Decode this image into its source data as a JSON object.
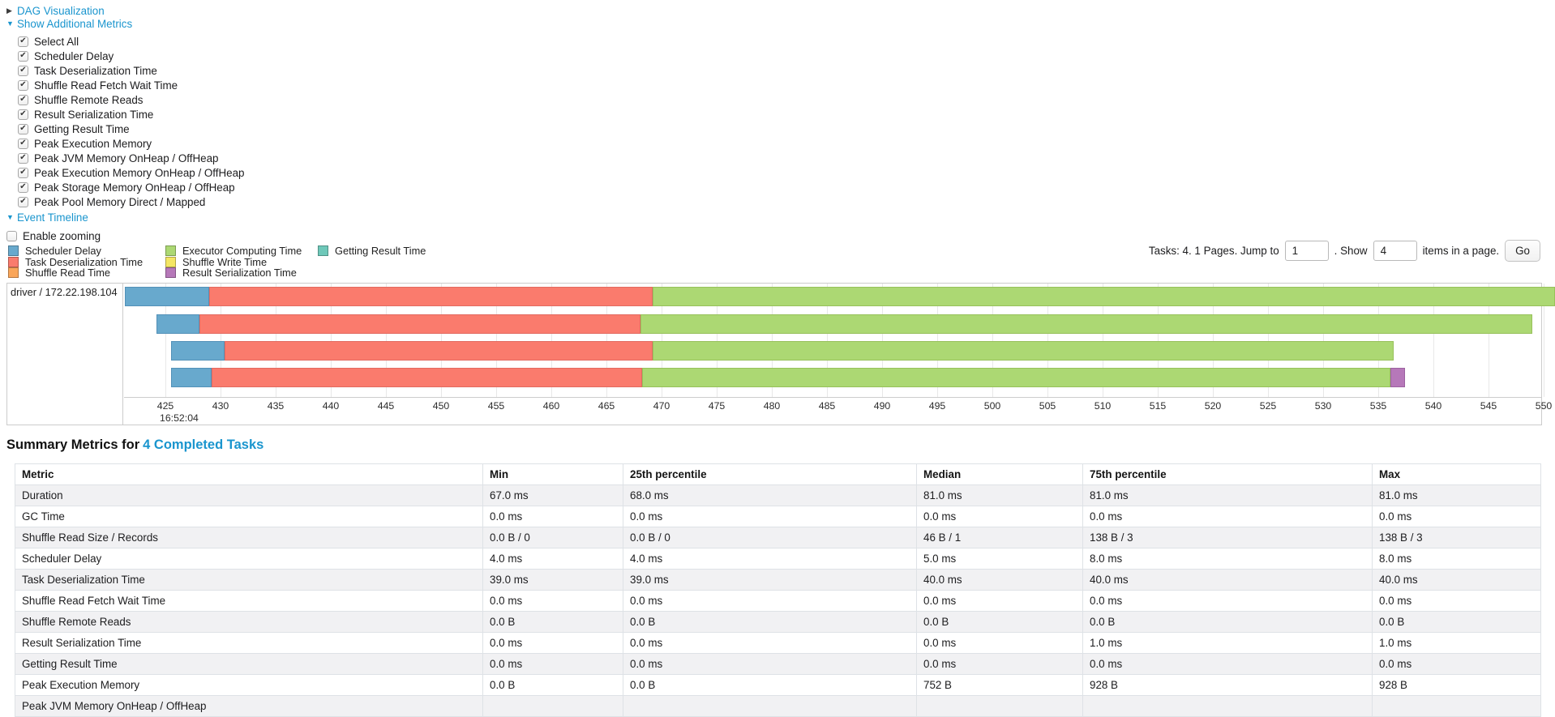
{
  "controls": {
    "dag_toggle": {
      "arrow": "▶",
      "label": "DAG Visualization"
    },
    "metrics_toggle": {
      "arrow": "▼",
      "label": "Show Additional Metrics"
    },
    "metric_checkboxes": [
      {
        "label": "Select All",
        "checked": true
      },
      {
        "label": "Scheduler Delay",
        "checked": true
      },
      {
        "label": "Task Deserialization Time",
        "checked": true
      },
      {
        "label": "Shuffle Read Fetch Wait Time",
        "checked": true
      },
      {
        "label": "Shuffle Remote Reads",
        "checked": true
      },
      {
        "label": "Result Serialization Time",
        "checked": true
      },
      {
        "label": "Getting Result Time",
        "checked": true
      },
      {
        "label": "Peak Execution Memory",
        "checked": true
      },
      {
        "label": "Peak JVM Memory OnHeap / OffHeap",
        "checked": true
      },
      {
        "label": "Peak Execution Memory OnHeap / OffHeap",
        "checked": true
      },
      {
        "label": "Peak Storage Memory OnHeap / OffHeap",
        "checked": true
      },
      {
        "label": "Peak Pool Memory Direct / Mapped",
        "checked": true
      }
    ],
    "timeline_toggle": {
      "arrow": "▼",
      "label": "Event Timeline"
    },
    "enable_zooming": {
      "label": "Enable zooming",
      "checked": false
    }
  },
  "legend": {
    "columns": [
      [
        {
          "label": "Scheduler Delay",
          "color": "#68A9CD"
        },
        {
          "label": "Task Deserialization Time",
          "color": "#FA7B6D"
        },
        {
          "label": "Shuffle Read Time",
          "color": "#FAA65A"
        }
      ],
      [
        {
          "label": "Executor Computing Time",
          "color": "#ACD873"
        },
        {
          "label": "Shuffle Write Time",
          "color": "#F4E664"
        },
        {
          "label": "Result Serialization Time",
          "color": "#B678B9"
        }
      ],
      [
        {
          "label": "Getting Result Time",
          "color": "#6EC8B9"
        }
      ]
    ]
  },
  "pagination": {
    "prefix": "Tasks: 4. 1 Pages. Jump to",
    "jump_value": "1",
    "mid": ". Show",
    "show_value": "4",
    "suffix": "items in a page.",
    "go_label": "Go"
  },
  "chart_data": {
    "type": "bar",
    "title": "Event Timeline",
    "row_label": "driver / 172.22.198.104",
    "time_origin_label": "16:52:04",
    "x_unit": "ms offset within 16:52:04",
    "x_ticks": [
      425,
      430,
      435,
      440,
      445,
      450,
      455,
      460,
      465,
      470,
      475,
      480,
      485,
      490,
      495,
      500,
      505,
      510,
      515,
      520,
      525,
      530,
      535,
      540,
      545,
      550
    ],
    "x_range": [
      421.3,
      549.8
    ],
    "colors": {
      "scheduler_delay": {
        "fill": "#68A9CD",
        "border": "#5391B8"
      },
      "task_deserialization": {
        "fill": "#FA7B6D",
        "border": "#E26A60"
      },
      "executor_computing": {
        "fill": "#ACD873",
        "border": "#97C15B"
      },
      "result_serialization": {
        "fill": "#B678B9",
        "border": "#9C62A0"
      },
      "shuffle_read": {
        "fill": "#FAA65A",
        "border": "#E0904A"
      },
      "shuffle_write": {
        "fill": "#F4E664",
        "border": "#DCCE50"
      },
      "getting_result": {
        "fill": "#6EC8B9",
        "border": "#58B0A1"
      }
    },
    "tasks": [
      {
        "segments": [
          [
            "scheduler_delay",
            421.3,
            429.0
          ],
          [
            "task_deserialization",
            429.0,
            469.2
          ],
          [
            "executor_computing",
            469.2,
            551.0
          ]
        ]
      },
      {
        "segments": [
          [
            "scheduler_delay",
            424.2,
            428.1
          ],
          [
            "task_deserialization",
            428.1,
            468.1
          ],
          [
            "executor_computing",
            468.1,
            549.0
          ]
        ]
      },
      {
        "segments": [
          [
            "scheduler_delay",
            425.5,
            430.4
          ],
          [
            "task_deserialization",
            430.4,
            469.2
          ],
          [
            "executor_computing",
            469.2,
            536.4
          ]
        ]
      },
      {
        "segments": [
          [
            "scheduler_delay",
            425.5,
            429.2
          ],
          [
            "task_deserialization",
            429.2,
            468.2
          ],
          [
            "executor_computing",
            468.2,
            536.1
          ],
          [
            "result_serialization",
            536.1,
            537.4
          ]
        ]
      }
    ]
  },
  "summary_table": {
    "title_prefix": "Summary Metrics for",
    "title_link": "4 Completed Tasks",
    "columns": [
      "Metric",
      "Min",
      "25th percentile",
      "Median",
      "75th percentile",
      "Max"
    ],
    "rows": [
      [
        "Duration",
        "67.0 ms",
        "68.0 ms",
        "81.0 ms",
        "81.0 ms",
        "81.0 ms"
      ],
      [
        "GC Time",
        "0.0 ms",
        "0.0 ms",
        "0.0 ms",
        "0.0 ms",
        "0.0 ms"
      ],
      [
        "Shuffle Read Size / Records",
        "0.0 B / 0",
        "0.0 B / 0",
        "46 B / 1",
        "138 B / 3",
        "138 B / 3"
      ],
      [
        "Scheduler Delay",
        "4.0 ms",
        "4.0 ms",
        "5.0 ms",
        "8.0 ms",
        "8.0 ms"
      ],
      [
        "Task Deserialization Time",
        "39.0 ms",
        "39.0 ms",
        "40.0 ms",
        "40.0 ms",
        "40.0 ms"
      ],
      [
        "Shuffle Read Fetch Wait Time",
        "0.0 ms",
        "0.0 ms",
        "0.0 ms",
        "0.0 ms",
        "0.0 ms"
      ],
      [
        "Shuffle Remote Reads",
        "0.0 B",
        "0.0 B",
        "0.0 B",
        "0.0 B",
        "0.0 B"
      ],
      [
        "Result Serialization Time",
        "0.0 ms",
        "0.0 ms",
        "0.0 ms",
        "1.0 ms",
        "1.0 ms"
      ],
      [
        "Getting Result Time",
        "0.0 ms",
        "0.0 ms",
        "0.0 ms",
        "0.0 ms",
        "0.0 ms"
      ],
      [
        "Peak Execution Memory",
        "0.0 B",
        "0.0 B",
        "752 B",
        "928 B",
        "928 B"
      ],
      [
        "Peak JVM Memory OnHeap / OffHeap",
        "",
        "",
        "",
        "",
        ""
      ]
    ]
  }
}
